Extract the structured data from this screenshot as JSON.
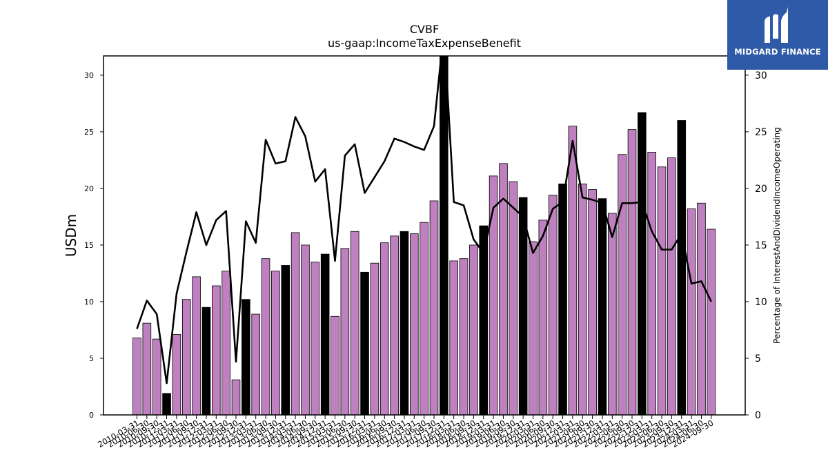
{
  "brand": {
    "name": "MIDGARD FINANCE",
    "color": "#2e5aa8"
  },
  "chart_data": {
    "type": "bar",
    "title": "CVBF",
    "subtitle": "us-gaap:IncomeTaxExpenseBenefit",
    "ylabel": "USDm",
    "y2label": "Percentage of InterestAndDividendIncomeOperating",
    "ylim": [
      0,
      31.7
    ],
    "y2lim": [
      0,
      31.7
    ],
    "yticks": [
      0,
      5,
      10,
      15,
      20,
      25,
      30
    ],
    "y2ticks": [
      0,
      5,
      10,
      15,
      20,
      25,
      30
    ],
    "colors": {
      "bar": "#bf80bf",
      "q4_bar": "#000000",
      "line": "#000000"
    },
    "categories": [
      "2010-03-31",
      "2010-06-30",
      "2010-09-30",
      "2010-12-31",
      "2011-03-31",
      "2011-06-30",
      "2011-09-30",
      "2011-12-31",
      "2012-03-31",
      "2012-06-30",
      "2012-09-30",
      "2012-12-31",
      "2013-03-31",
      "2013-06-30",
      "2013-09-30",
      "2013-12-31",
      "2014-03-31",
      "2014-06-30",
      "2014-09-30",
      "2014-12-31",
      "2015-03-31",
      "2015-06-30",
      "2015-09-30",
      "2015-12-31",
      "2016-03-31",
      "2016-06-30",
      "2016-09-30",
      "2016-12-31",
      "2017-03-31",
      "2017-06-30",
      "2017-09-30",
      "2017-12-31",
      "2018-03-31",
      "2018-06-30",
      "2018-09-30",
      "2018-12-31",
      "2019-03-31",
      "2019-06-30",
      "2019-09-30",
      "2019-12-31",
      "2020-03-31",
      "2020-06-30",
      "2020-09-30",
      "2020-12-31",
      "2021-03-31",
      "2021-06-30",
      "2021-09-30",
      "2021-12-31",
      "2022-03-31",
      "2022-06-30",
      "2022-09-30",
      "2022-12-31",
      "2023-03-31",
      "2023-06-30",
      "2023-09-30",
      "2023-12-31",
      "2024-03-31",
      "2024-06-30",
      "2024-09-30"
    ],
    "series": [
      {
        "kind": "bar",
        "values": [
          6.8,
          8.1,
          6.7,
          1.9,
          7.1,
          10.2,
          12.2,
          9.5,
          11.4,
          12.7,
          3.1,
          10.2,
          8.9,
          13.8,
          12.7,
          13.2,
          16.1,
          15.0,
          13.5,
          14.2,
          8.7,
          14.7,
          16.2,
          12.6,
          13.4,
          15.2,
          15.8,
          16.2,
          16.0,
          17.0,
          18.9,
          31.7,
          13.6,
          13.8,
          15.0,
          16.7,
          21.1,
          22.2,
          20.6,
          19.2,
          15.3,
          17.2,
          19.4,
          20.4,
          25.5,
          20.4,
          19.9,
          19.1,
          17.8,
          23.0,
          25.2,
          26.7,
          23.2,
          21.9,
          22.7,
          26.0,
          18.2,
          18.7,
          16.4
        ],
        "highlight": [
          false,
          false,
          false,
          true,
          false,
          false,
          false,
          true,
          false,
          false,
          false,
          true,
          false,
          false,
          false,
          true,
          false,
          false,
          false,
          true,
          false,
          false,
          false,
          true,
          false,
          false,
          false,
          true,
          false,
          false,
          false,
          true,
          false,
          false,
          false,
          true,
          false,
          false,
          false,
          true,
          false,
          false,
          false,
          true,
          false,
          false,
          false,
          true,
          false,
          false,
          false,
          true,
          false,
          false,
          false,
          true,
          false,
          false,
          false
        ]
      },
      {
        "kind": "line",
        "axis": "right",
        "values": [
          7.6,
          10.1,
          8.9,
          2.8,
          10.7,
          14.4,
          17.9,
          15.0,
          17.2,
          18.0,
          4.7,
          17.1,
          15.2,
          24.3,
          22.2,
          22.4,
          26.3,
          24.6,
          20.6,
          21.7,
          13.6,
          22.9,
          23.9,
          19.6,
          21.0,
          22.4,
          24.4,
          24.1,
          23.7,
          23.4,
          25.5,
          34.0,
          18.8,
          18.5,
          15.5,
          14.3,
          18.3,
          19.1,
          18.3,
          17.5,
          14.3,
          15.8,
          18.2,
          18.8,
          24.2,
          19.2,
          19.0,
          18.7,
          15.7,
          18.7,
          18.7,
          18.8,
          16.2,
          14.6,
          14.6,
          16.0,
          11.6,
          11.8,
          10.0
        ]
      }
    ]
  }
}
